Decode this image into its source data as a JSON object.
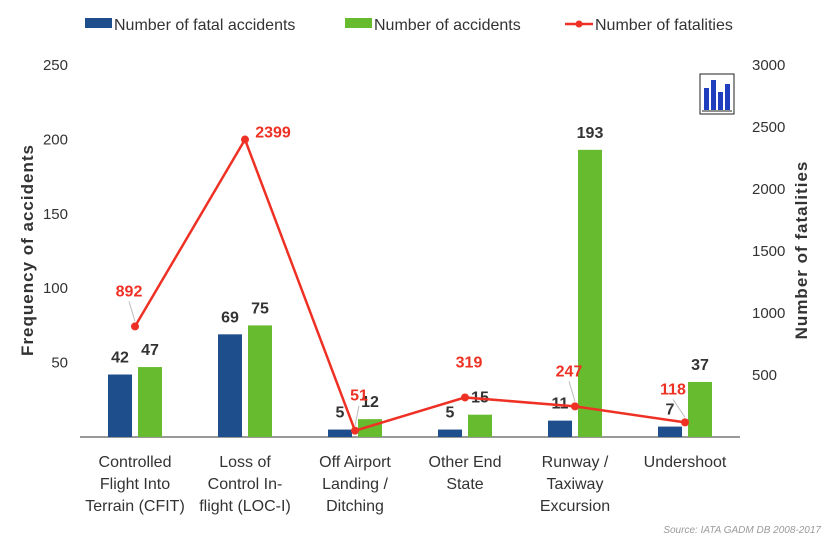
{
  "legend": {
    "fatal": "Number of fatal accidents",
    "accidents": "Number of accidents",
    "fatalities": "Number of fatalities"
  },
  "colors": {
    "fatal": "#1f4e8c",
    "accidents": "#66bb2e",
    "fatalities": "#ee3124",
    "axis": "#333333"
  },
  "icon": "bar-chart-icon",
  "source": "Source: IATA GADM DB 2008-2017",
  "chart_data": {
    "type": "bar",
    "categories": [
      [
        "Controlled",
        "Flight Into",
        "Terrain (CFIT)"
      ],
      [
        "Loss  of",
        "Control  In-",
        "flight (LOC-I)"
      ],
      [
        "Off Airport",
        "Landing /",
        "Ditching"
      ],
      [
        "Other End",
        "State"
      ],
      [
        "Runway /",
        "Taxiway",
        "Excursion"
      ],
      [
        "Undershoot"
      ]
    ],
    "series": [
      {
        "name": "Number of fatal accidents",
        "axis": "left",
        "kind": "bar",
        "values": [
          42,
          69,
          5,
          5,
          11,
          7
        ]
      },
      {
        "name": "Number of accidents",
        "axis": "left",
        "kind": "bar",
        "values": [
          47,
          75,
          12,
          15,
          193,
          37
        ]
      },
      {
        "name": "Number of fatalities",
        "axis": "right",
        "kind": "line",
        "values": [
          892,
          2399,
          51,
          319,
          247,
          118
        ]
      }
    ],
    "ylabel": "Frequency of accidents",
    "y2label": "Number of fatalities",
    "ylim": [
      0,
      250
    ],
    "y2lim": [
      0,
      3000
    ],
    "yticks": [
      50,
      100,
      150,
      200,
      250
    ],
    "y2ticks": [
      500,
      1000,
      1500,
      2000,
      2500,
      3000
    ],
    "legend_position": "top",
    "grid": false
  }
}
